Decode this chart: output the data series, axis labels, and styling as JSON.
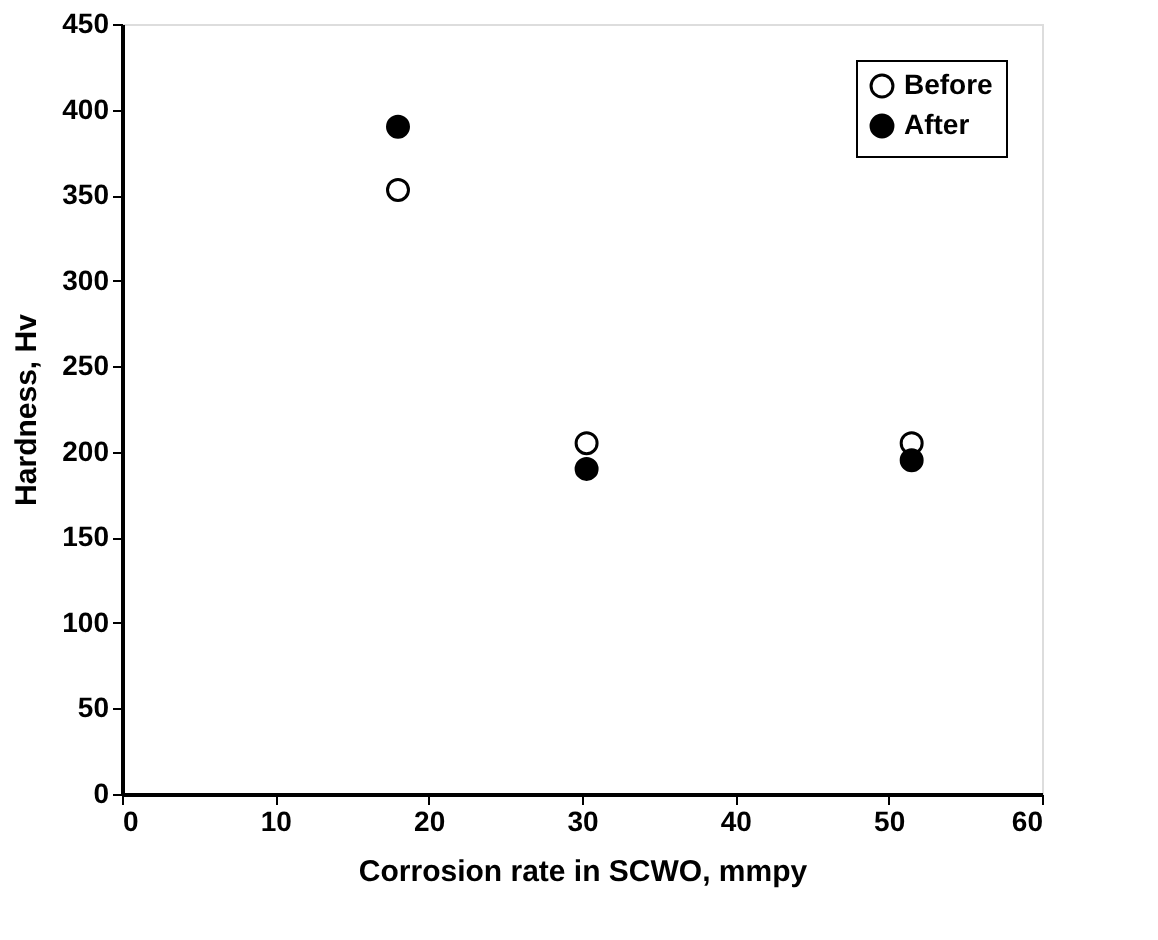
{
  "chart_data": {
    "type": "scatter",
    "xlabel": "Corrosion rate in SCWO, mmpy",
    "ylabel": "Hardness, Hv",
    "x": [
      18,
      30.3,
      51.5
    ],
    "series": [
      {
        "name": "Before",
        "color": "#ffffff",
        "values": [
          353,
          205,
          205
        ]
      },
      {
        "name": "After",
        "color": "#000000",
        "values": [
          390,
          190,
          195
        ]
      }
    ],
    "xlim": [
      0,
      60
    ],
    "xticks": [
      0,
      10,
      20,
      30,
      40,
      50,
      60
    ],
    "ylim": [
      0,
      450
    ],
    "yticks": [
      0,
      50,
      100,
      150,
      200,
      250,
      300,
      350,
      400,
      450
    ],
    "grid": false,
    "legend": "top right",
    "marker": "circle"
  }
}
